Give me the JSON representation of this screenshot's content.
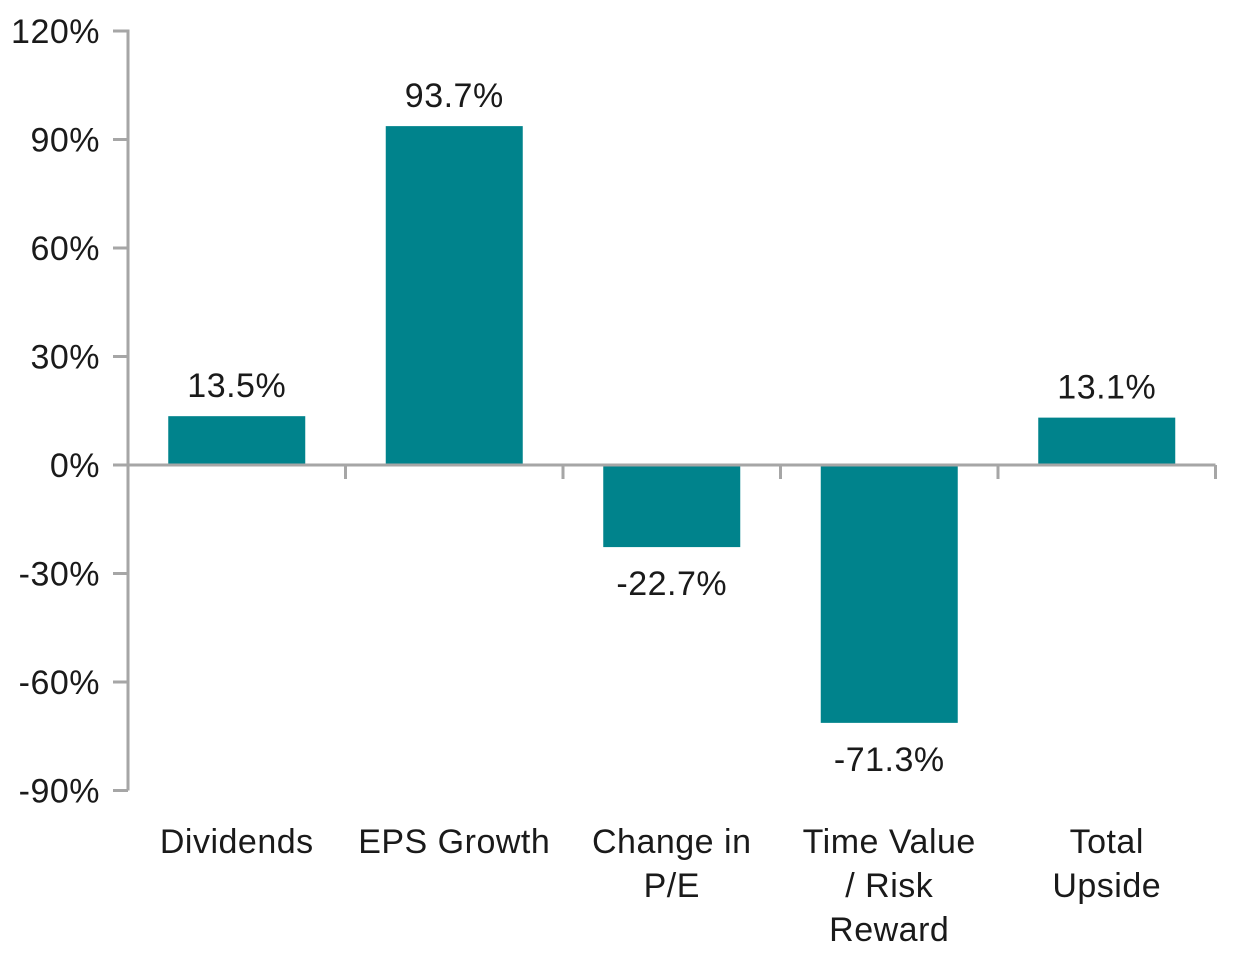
{
  "chart_data": {
    "type": "bar",
    "title": "",
    "categories": [
      "Dividends",
      "EPS Growth",
      "Change in\nP/E",
      "Time Value\n/ Risk\nReward",
      "Total\nUpside"
    ],
    "values": [
      13.5,
      93.7,
      -22.7,
      -71.3,
      13.1
    ],
    "value_labels": [
      "13.5%",
      "93.7%",
      "-22.7%",
      "-71.3%",
      "13.1%"
    ],
    "yticks": [
      120,
      90,
      60,
      30,
      0,
      -30,
      -60,
      -90
    ],
    "ytick_labels": [
      "120%",
      "90%",
      "60%",
      "30%",
      "0%",
      "-30%",
      "-60%",
      "-90%"
    ],
    "ylim": [
      -90,
      120
    ],
    "ytick_step": 30,
    "xlabel": "",
    "ylabel": "",
    "grid": false,
    "legend": false,
    "colors": {
      "bar": "#00838C",
      "axis": "#A6A6A6",
      "text": "#1A1A1A",
      "background": "#FFFFFF"
    }
  }
}
